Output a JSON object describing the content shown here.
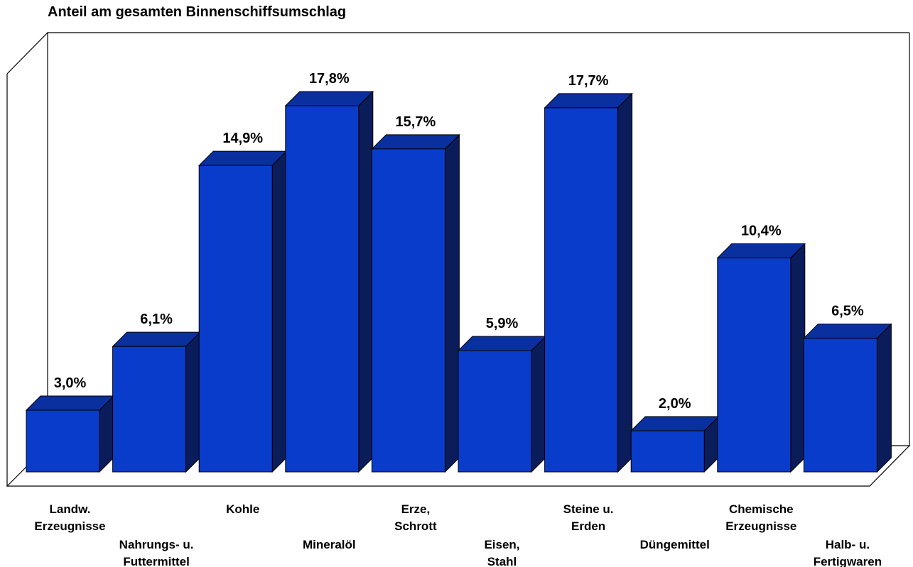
{
  "chart_data": {
    "type": "bar",
    "title": "Anteil am gesamten Binnenschiffsumschlag",
    "categories": [
      [
        "Landw.",
        "Erzeugnisse"
      ],
      [
        "Nahrungs- u.",
        "Futtermittel"
      ],
      [
        "Kohle"
      ],
      [
        "Mineralöl"
      ],
      [
        "Erze,",
        "Schrott"
      ],
      [
        "Eisen,",
        "Stahl"
      ],
      [
        "Steine u.",
        "Erden"
      ],
      [
        "Düngemittel"
      ],
      [
        "Chemische",
        "Erzeugnisse"
      ],
      [
        "Halb- u.",
        "Fertigwaren"
      ]
    ],
    "values": [
      3.0,
      6.1,
      14.9,
      17.8,
      15.7,
      5.9,
      17.7,
      2.0,
      10.4,
      6.5
    ],
    "value_labels": [
      "3,0%",
      "6,1%",
      "14,9%",
      "17,8%",
      "15,7%",
      "5,9%",
      "17,7%",
      "2,0%",
      "10,4%",
      "6,5%"
    ],
    "ylim": [
      0,
      18
    ],
    "grid": false,
    "legend": "none",
    "colors": {
      "front": "#0a3ccc",
      "top": "#0a2f9e",
      "side": "#0a1c5a",
      "edge": "#000000"
    }
  }
}
